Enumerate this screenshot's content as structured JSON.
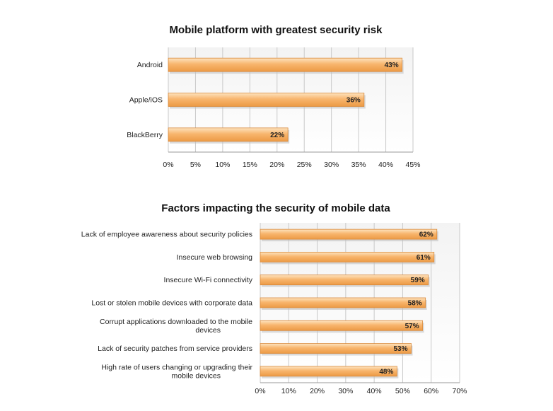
{
  "colors": {
    "bar_top": "#fde3bf",
    "bar_mid": "#f8b56d",
    "bar_bottom": "#ec9a45",
    "bar_edge": "#d98a3c",
    "grid": "#c9c9c9",
    "plot_bg_a": "#f3f3f3",
    "plot_bg_b": "#ffffff"
  },
  "chart_data": [
    {
      "type": "bar",
      "orientation": "horizontal",
      "title": "Mobile platform with greatest security risk",
      "categories": [
        "Android",
        "Apple/iOS",
        "BlackBerry"
      ],
      "values": [
        43,
        36,
        22
      ],
      "value_labels": [
        "43%",
        "36%",
        "22%"
      ],
      "xlim": [
        0,
        45
      ],
      "xticks": [
        "0%",
        "5%",
        "10%",
        "15%",
        "20%",
        "25%",
        "30%",
        "35%",
        "40%",
        "45%"
      ],
      "grid": true,
      "legend": "none"
    },
    {
      "type": "bar",
      "orientation": "horizontal",
      "title": "Factors impacting the security of mobile data",
      "categories": [
        "Lack of employee awareness about security policies",
        "Insecure web browsing",
        "Insecure Wi-Fi connectivity",
        "Lost or stolen mobile devices with corporate data",
        "Corrupt applications downloaded to the mobile devices",
        "Lack of security patches from service providers",
        "High rate of users changing or upgrading their mobile devices"
      ],
      "values": [
        62,
        61,
        59,
        58,
        57,
        53,
        48
      ],
      "value_labels": [
        "62%",
        "61%",
        "59%",
        "58%",
        "57%",
        "53%",
        "48%"
      ],
      "xlim": [
        0,
        70
      ],
      "xticks": [
        "0%",
        "10%",
        "20%",
        "30%",
        "40%",
        "50%",
        "60%",
        "70%"
      ],
      "grid": true,
      "legend": "none"
    }
  ]
}
